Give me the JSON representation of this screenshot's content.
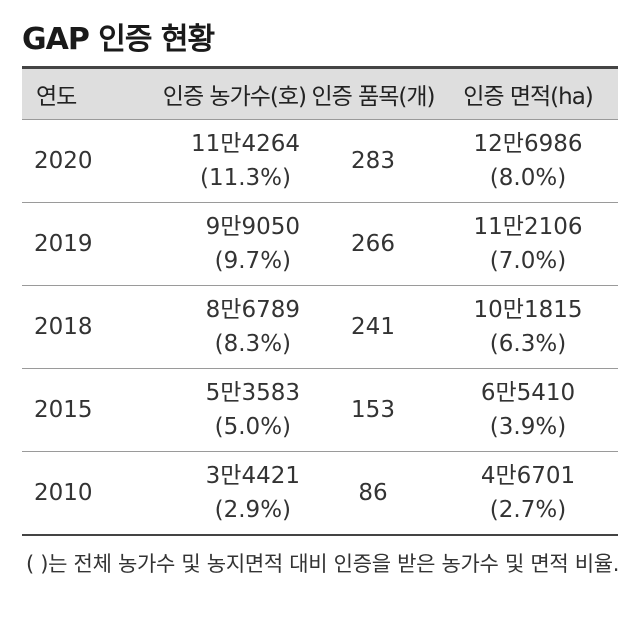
{
  "title": "GAP 인증 현황",
  "table": {
    "headers": {
      "year": "연도",
      "farms": "인증 농가수(호)",
      "items": "인증 품목(개)",
      "area": "인증 면적(ha)"
    },
    "rows": [
      {
        "year": "2020",
        "farms": "11만4264",
        "farms_pct": "(11.3%)",
        "items": "283",
        "area": "12만6986",
        "area_pct": "(8.0%)"
      },
      {
        "year": "2019",
        "farms": "9만9050",
        "farms_pct": "(9.7%)",
        "items": "266",
        "area": "11만2106",
        "area_pct": "(7.0%)"
      },
      {
        "year": "2018",
        "farms": "8만6789",
        "farms_pct": "(8.3%)",
        "items": "241",
        "area": "10만1815",
        "area_pct": "(6.3%)"
      },
      {
        "year": "2015",
        "farms": "5만3583",
        "farms_pct": "(5.0%)",
        "items": "153",
        "area": "6만5410",
        "area_pct": "(3.9%)"
      },
      {
        "year": "2010",
        "farms": "3만4421",
        "farms_pct": "(2.9%)",
        "items": "86",
        "area": "4만6701",
        "area_pct": "(2.7%)"
      }
    ]
  },
  "note": "(  )는 전체 농가수 및 농지면적 대비 인증을 받은 농가수 및 면적 비율."
}
